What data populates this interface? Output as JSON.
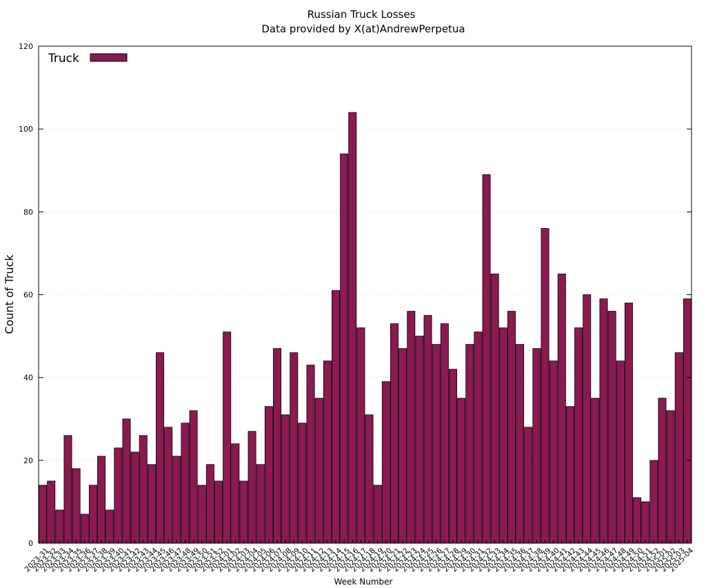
{
  "chart_data": {
    "type": "bar",
    "title": "Russian Truck Losses",
    "subtitle": "Data provided by X(at)AndrewPerpetua",
    "xlabel": "Week Number",
    "ylabel": "Count of Truck",
    "ylim": [
      0,
      120
    ],
    "yticks": [
      0,
      20,
      40,
      60,
      80,
      100,
      120
    ],
    "grid": true,
    "legend_position": "top-left",
    "series": [
      {
        "name": "Truck",
        "color": "#8a1a50",
        "values": [
          14,
          15,
          8,
          26,
          18,
          7,
          14,
          21,
          8,
          23,
          30,
          22,
          26,
          19,
          46,
          28,
          21,
          29,
          32,
          14,
          19,
          15,
          51,
          24,
          15,
          27,
          19,
          33,
          47,
          31,
          46,
          29,
          43,
          35,
          44,
          61,
          94,
          104,
          52,
          31,
          14,
          39,
          53,
          47,
          56,
          50,
          55,
          48,
          53,
          42,
          35,
          48,
          51,
          89,
          65,
          52,
          56,
          48,
          28,
          47,
          76,
          44,
          65,
          33,
          52,
          60,
          35,
          59,
          56,
          44,
          58,
          11,
          10,
          20,
          35,
          32,
          46,
          59
        ]
      }
    ],
    "categories": [
      "2023-31",
      "2023-32",
      "2023-33",
      "2023-34",
      "2023-35",
      "2023-36",
      "2023-37",
      "2023-38",
      "2023-39",
      "2023-40",
      "2023-41",
      "2023-42",
      "2023-43",
      "2023-44",
      "2023-45",
      "2023-46",
      "2023-47",
      "2023-48",
      "2023-49",
      "2023-50",
      "2023-51",
      "2023-52",
      "2024-01",
      "2024-02",
      "2024-03",
      "2024-04",
      "2024-05",
      "2024-06",
      "2024-07",
      "2024-08",
      "2024-09",
      "2024-10",
      "2024-11",
      "2024-12",
      "2024-13",
      "2024-14",
      "2024-15",
      "2024-16",
      "2024-17",
      "2024-18",
      "2024-19",
      "2024-20",
      "2024-21",
      "2024-22",
      "2024-23",
      "2024-24",
      "2024-25",
      "2024-26",
      "2024-27",
      "2024-28",
      "2024-29",
      "2024-30",
      "2024-31",
      "2024-32",
      "2024-33",
      "2024-34",
      "2024-35",
      "2024-36",
      "2024-37",
      "2024-38",
      "2024-39",
      "2024-40",
      "2024-41",
      "2024-42",
      "2024-43",
      "2024-44",
      "2024-45",
      "2024-46",
      "2024-47",
      "2024-48",
      "2024-49",
      "2024-50",
      "2024-51",
      "2024-52",
      "2025-01",
      "2025-02",
      "2025-03",
      "2025-04"
    ]
  }
}
